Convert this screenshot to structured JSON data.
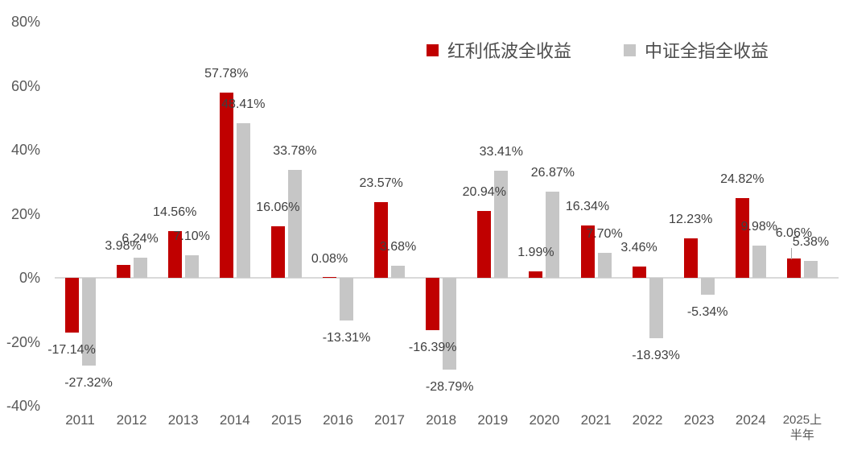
{
  "chart_data": {
    "type": "bar",
    "title": "",
    "xlabel": "",
    "ylabel": "",
    "categories": [
      "2011",
      "2012",
      "2013",
      "2014",
      "2015",
      "2016",
      "2017",
      "2018",
      "2019",
      "2020",
      "2021",
      "2022",
      "2023",
      "2024",
      "2025上半年"
    ],
    "category_display": [
      "2011",
      "2012",
      "2013",
      "2014",
      "2015",
      "2016",
      "2017",
      "2018",
      "2019",
      "2020",
      "2021",
      "2022",
      "2023",
      "2024",
      "2025上\n半年"
    ],
    "series": [
      {
        "name": "红利低波全收益",
        "color": "#C00000",
        "values": [
          -17.14,
          3.98,
          14.56,
          57.78,
          16.06,
          0.08,
          23.57,
          -16.39,
          20.94,
          1.99,
          16.34,
          3.46,
          12.23,
          24.82,
          6.06
        ]
      },
      {
        "name": "中证全指全收益",
        "color": "#C6C6C6",
        "values": [
          -27.32,
          6.24,
          7.1,
          48.41,
          33.78,
          -13.31,
          3.68,
          -28.79,
          33.41,
          26.87,
          7.7,
          -18.93,
          -5.34,
          9.98,
          5.38
        ]
      }
    ],
    "data_labels": [
      [
        "-17.14%",
        "3.98%",
        "14.56%",
        "57.78%",
        "16.06%",
        "0.08%",
        "23.57%",
        "-16.39%",
        "20.94%",
        "1.99%",
        "16.34%",
        "3.46%",
        "12.23%",
        "24.82%",
        "6.06%"
      ],
      [
        "-27.32%",
        "6.24%",
        "7.10%",
        "48.41%",
        "33.78%",
        "-13.31%",
        "3.68%",
        "-28.79%",
        "33.41%",
        "26.87%",
        "7.70%",
        "-18.93%",
        "-5.34%",
        "9.98%",
        "5.38%"
      ]
    ],
    "ylim": [
      -40,
      80
    ],
    "yticks": [
      80,
      60,
      40,
      20,
      0,
      -20,
      -40
    ],
    "ytick_labels": [
      "80%",
      "60%",
      "40%",
      "20%",
      "0%",
      "-20%",
      "-40%"
    ],
    "grid": false,
    "legend_position": "top",
    "label_format": "0.00%",
    "colors": {
      "axis_line": "#d9d9d9",
      "tick_text": "#595959",
      "data_label_text": "#404040",
      "leader_line": "#a6a6a6"
    },
    "leader_line": {
      "series": 1,
      "index": 14
    },
    "label_offsets": [
      {
        "series": 0,
        "index": 14,
        "dy": -8
      }
    ]
  }
}
